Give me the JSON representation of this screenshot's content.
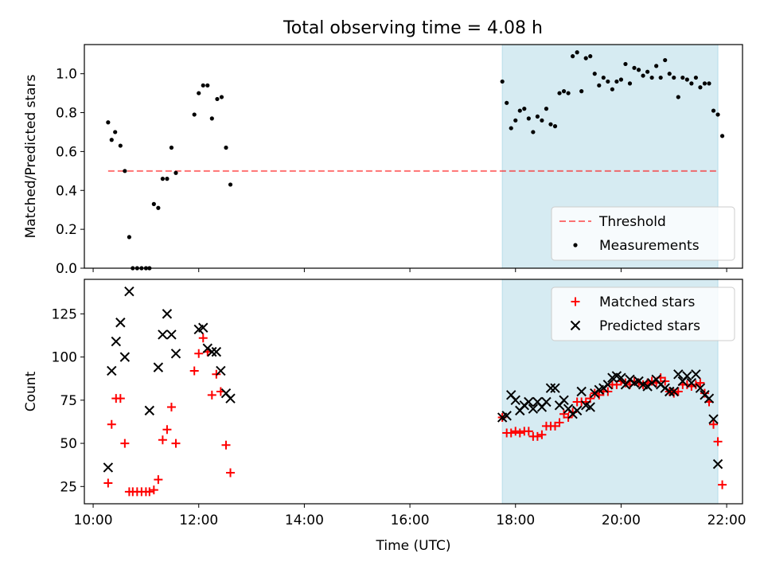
{
  "title": "Total observing time = 4.08 h",
  "chart_data": [
    {
      "type": "scatter",
      "panel": "top",
      "ylabel": "Matched/Predicted stars",
      "xlabel": "",
      "xlim": [
        "09:50",
        "22:18"
      ],
      "ylim": [
        0,
        1.15
      ],
      "y_ticks": [
        0.0,
        0.2,
        0.4,
        0.6,
        0.8,
        1.0
      ],
      "y_tick_labels": [
        "0.0",
        "0.2",
        "0.4",
        "0.6",
        "0.8",
        "1.0"
      ],
      "x_ticks": [
        "10:00",
        "12:00",
        "14:00",
        "16:00",
        "18:00",
        "20:00",
        "22:00"
      ],
      "shaded_span": [
        "17:45",
        "21:50"
      ],
      "threshold": 0.5,
      "threshold_span": [
        "10:17",
        "21:50"
      ],
      "legend_position": "lower right",
      "legend": [
        {
          "label": "Threshold",
          "marker": "dashed-line",
          "color": "#ff7070"
        },
        {
          "label": "Measurements",
          "marker": "dot",
          "color": "#000000"
        }
      ],
      "series": [
        {
          "name": "Measurements",
          "color": "#000000",
          "points": [
            [
              "10:17",
              0.75
            ],
            [
              "10:21",
              0.66
            ],
            [
              "10:25",
              0.7
            ],
            [
              "10:31",
              0.63
            ],
            [
              "10:36",
              0.5
            ],
            [
              "10:41",
              0.16
            ],
            [
              "10:45",
              0.0
            ],
            [
              "10:50",
              0.0
            ],
            [
              "10:55",
              0.0
            ],
            [
              "11:00",
              0.0
            ],
            [
              "11:04",
              0.0
            ],
            [
              "11:09",
              0.33
            ],
            [
              "11:14",
              0.31
            ],
            [
              "11:19",
              0.46
            ],
            [
              "11:24",
              0.46
            ],
            [
              "11:29",
              0.62
            ],
            [
              "11:34",
              0.49
            ],
            [
              "11:55",
              0.79
            ],
            [
              "12:00",
              0.9
            ],
            [
              "12:05",
              0.94
            ],
            [
              "12:10",
              0.94
            ],
            [
              "12:15",
              0.77
            ],
            [
              "12:21",
              0.87
            ],
            [
              "12:26",
              0.88
            ],
            [
              "12:31",
              0.62
            ],
            [
              "12:36",
              0.43
            ],
            [
              "17:45",
              0.96
            ],
            [
              "17:50",
              0.85
            ],
            [
              "17:55",
              0.72
            ],
            [
              "18:00",
              0.76
            ],
            [
              "18:05",
              0.81
            ],
            [
              "18:10",
              0.82
            ],
            [
              "18:15",
              0.77
            ],
            [
              "18:20",
              0.7
            ],
            [
              "18:25",
              0.78
            ],
            [
              "18:30",
              0.76
            ],
            [
              "18:35",
              0.82
            ],
            [
              "18:40",
              0.74
            ],
            [
              "18:45",
              0.73
            ],
            [
              "18:50",
              0.9
            ],
            [
              "18:55",
              0.91
            ],
            [
              "19:00",
              0.9
            ],
            [
              "19:05",
              1.09
            ],
            [
              "19:10",
              1.11
            ],
            [
              "19:15",
              0.91
            ],
            [
              "19:20",
              1.08
            ],
            [
              "19:25",
              1.09
            ],
            [
              "19:30",
              1.0
            ],
            [
              "19:35",
              0.94
            ],
            [
              "19:40",
              0.98
            ],
            [
              "19:45",
              0.96
            ],
            [
              "19:50",
              0.92
            ],
            [
              "19:55",
              0.96
            ],
            [
              "20:00",
              0.97
            ],
            [
              "20:05",
              1.05
            ],
            [
              "20:10",
              0.95
            ],
            [
              "20:15",
              1.03
            ],
            [
              "20:20",
              1.02
            ],
            [
              "20:25",
              0.99
            ],
            [
              "20:30",
              1.01
            ],
            [
              "20:35",
              0.98
            ],
            [
              "20:40",
              1.04
            ],
            [
              "20:45",
              0.98
            ],
            [
              "20:50",
              1.07
            ],
            [
              "20:55",
              1.0
            ],
            [
              "21:00",
              0.98
            ],
            [
              "21:05",
              0.88
            ],
            [
              "21:10",
              0.98
            ],
            [
              "21:15",
              0.97
            ],
            [
              "21:20",
              0.95
            ],
            [
              "21:25",
              0.98
            ],
            [
              "21:30",
              0.93
            ],
            [
              "21:35",
              0.95
            ],
            [
              "21:40",
              0.95
            ],
            [
              "21:45",
              0.81
            ],
            [
              "21:50",
              0.79
            ],
            [
              "21:55",
              0.68
            ]
          ]
        }
      ]
    },
    {
      "type": "scatter",
      "panel": "bottom",
      "ylabel": "Count",
      "xlabel": "Time (UTC)",
      "xlim": [
        "09:50",
        "22:18"
      ],
      "ylim": [
        15,
        145
      ],
      "y_ticks": [
        25,
        50,
        75,
        100,
        125
      ],
      "x_ticks": [
        "10:00",
        "12:00",
        "14:00",
        "16:00",
        "18:00",
        "20:00",
        "22:00"
      ],
      "x_tick_labels": [
        "10:00",
        "12:00",
        "14:00",
        "16:00",
        "18:00",
        "20:00",
        "22:00"
      ],
      "shaded_span": [
        "17:45",
        "21:50"
      ],
      "legend_position": "upper right",
      "legend": [
        {
          "label": "Matched stars",
          "marker": "plus",
          "color": "#ff0000"
        },
        {
          "label": "Predicted stars",
          "marker": "x",
          "color": "#000000"
        }
      ],
      "series": [
        {
          "name": "Matched stars",
          "marker": "plus",
          "color": "#ff0000",
          "points": [
            [
              "10:17",
              27
            ],
            [
              "10:21",
              61
            ],
            [
              "10:26",
              76
            ],
            [
              "10:31",
              76
            ],
            [
              "10:36",
              50
            ],
            [
              "10:41",
              22
            ],
            [
              "10:45",
              22
            ],
            [
              "10:50",
              22
            ],
            [
              "10:55",
              22
            ],
            [
              "11:00",
              22
            ],
            [
              "11:04",
              22
            ],
            [
              "11:09",
              23
            ],
            [
              "11:14",
              29
            ],
            [
              "11:19",
              52
            ],
            [
              "11:24",
              58
            ],
            [
              "11:29",
              71
            ],
            [
              "11:34",
              50
            ],
            [
              "11:55",
              92
            ],
            [
              "12:00",
              102
            ],
            [
              "12:05",
              111
            ],
            [
              "12:10",
              103
            ],
            [
              "12:15",
              78
            ],
            [
              "12:20",
              90
            ],
            [
              "12:25",
              80
            ],
            [
              "12:31",
              49
            ],
            [
              "12:36",
              33
            ],
            [
              "17:45",
              65
            ],
            [
              "17:50",
              56
            ],
            [
              "17:55",
              56
            ],
            [
              "18:00",
              57
            ],
            [
              "18:05",
              56
            ],
            [
              "18:10",
              57
            ],
            [
              "18:15",
              57
            ],
            [
              "18:20",
              54
            ],
            [
              "18:25",
              54
            ],
            [
              "18:30",
              55
            ],
            [
              "18:35",
              60
            ],
            [
              "18:40",
              60
            ],
            [
              "18:45",
              60
            ],
            [
              "18:50",
              62
            ],
            [
              "18:55",
              67
            ],
            [
              "19:00",
              65
            ],
            [
              "19:05",
              68
            ],
            [
              "19:10",
              74
            ],
            [
              "19:15",
              74
            ],
            [
              "19:20",
              74
            ],
            [
              "19:25",
              76
            ],
            [
              "19:30",
              79
            ],
            [
              "19:35",
              78
            ],
            [
              "19:40",
              80
            ],
            [
              "19:45",
              80
            ],
            [
              "19:50",
              84
            ],
            [
              "19:55",
              84
            ],
            [
              "20:00",
              86
            ],
            [
              "20:05",
              85
            ],
            [
              "20:10",
              84
            ],
            [
              "20:15",
              86
            ],
            [
              "20:20",
              85
            ],
            [
              "20:25",
              84
            ],
            [
              "20:30",
              85
            ],
            [
              "20:35",
              86
            ],
            [
              "20:40",
              85
            ],
            [
              "20:45",
              88
            ],
            [
              "20:50",
              86
            ],
            [
              "20:55",
              80
            ],
            [
              "21:00",
              79
            ],
            [
              "21:05",
              80
            ],
            [
              "21:10",
              84
            ],
            [
              "21:15",
              84
            ],
            [
              "21:20",
              83
            ],
            [
              "21:25",
              84
            ],
            [
              "21:30",
              85
            ],
            [
              "21:35",
              79
            ],
            [
              "21:40",
              74
            ],
            [
              "21:45",
              61
            ],
            [
              "21:50",
              51
            ],
            [
              "21:55",
              26
            ]
          ]
        },
        {
          "name": "Predicted stars",
          "marker": "x",
          "color": "#000000",
          "points": [
            [
              "10:17",
              36
            ],
            [
              "10:21",
              92
            ],
            [
              "10:26",
              109
            ],
            [
              "10:31",
              120
            ],
            [
              "10:36",
              100
            ],
            [
              "10:41",
              138
            ],
            [
              "11:04",
              69
            ],
            [
              "11:14",
              94
            ],
            [
              "11:19",
              113
            ],
            [
              "11:24",
              125
            ],
            [
              "11:29",
              113
            ],
            [
              "11:34",
              102
            ],
            [
              "12:00",
              116
            ],
            [
              "12:05",
              117
            ],
            [
              "12:10",
              105
            ],
            [
              "12:15",
              103
            ],
            [
              "12:20",
              103
            ],
            [
              "12:25",
              92
            ],
            [
              "12:31",
              79
            ],
            [
              "12:36",
              76
            ],
            [
              "17:45",
              65
            ],
            [
              "17:50",
              66
            ],
            [
              "17:55",
              78
            ],
            [
              "18:00",
              75
            ],
            [
              "18:05",
              69
            ],
            [
              "18:10",
              72
            ],
            [
              "18:15",
              74
            ],
            [
              "18:20",
              70
            ],
            [
              "18:25",
              74
            ],
            [
              "18:30",
              71
            ],
            [
              "18:35",
              74
            ],
            [
              "18:40",
              82
            ],
            [
              "18:45",
              82
            ],
            [
              "18:50",
              72
            ],
            [
              "18:55",
              75
            ],
            [
              "19:00",
              70
            ],
            [
              "19:05",
              67
            ],
            [
              "19:10",
              69
            ],
            [
              "19:15",
              80
            ],
            [
              "19:20",
              72
            ],
            [
              "19:25",
              71
            ],
            [
              "19:30",
              79
            ],
            [
              "19:35",
              81
            ],
            [
              "19:40",
              82
            ],
            [
              "19:45",
              84
            ],
            [
              "19:50",
              88
            ],
            [
              "19:55",
              89
            ],
            [
              "20:00",
              88
            ],
            [
              "20:05",
              84
            ],
            [
              "20:10",
              87
            ],
            [
              "20:15",
              85
            ],
            [
              "20:20",
              86
            ],
            [
              "20:25",
              84
            ],
            [
              "20:30",
              83
            ],
            [
              "20:35",
              85
            ],
            [
              "20:40",
              87
            ],
            [
              "20:45",
              84
            ],
            [
              "20:50",
              82
            ],
            [
              "20:55",
              80
            ],
            [
              "21:00",
              80
            ],
            [
              "21:05",
              90
            ],
            [
              "21:10",
              86
            ],
            [
              "21:15",
              89
            ],
            [
              "21:20",
              85
            ],
            [
              "21:25",
              90
            ],
            [
              "21:30",
              82
            ],
            [
              "21:35",
              78
            ],
            [
              "21:40",
              76
            ],
            [
              "21:45",
              64
            ],
            [
              "21:50",
              38
            ]
          ]
        }
      ]
    }
  ]
}
